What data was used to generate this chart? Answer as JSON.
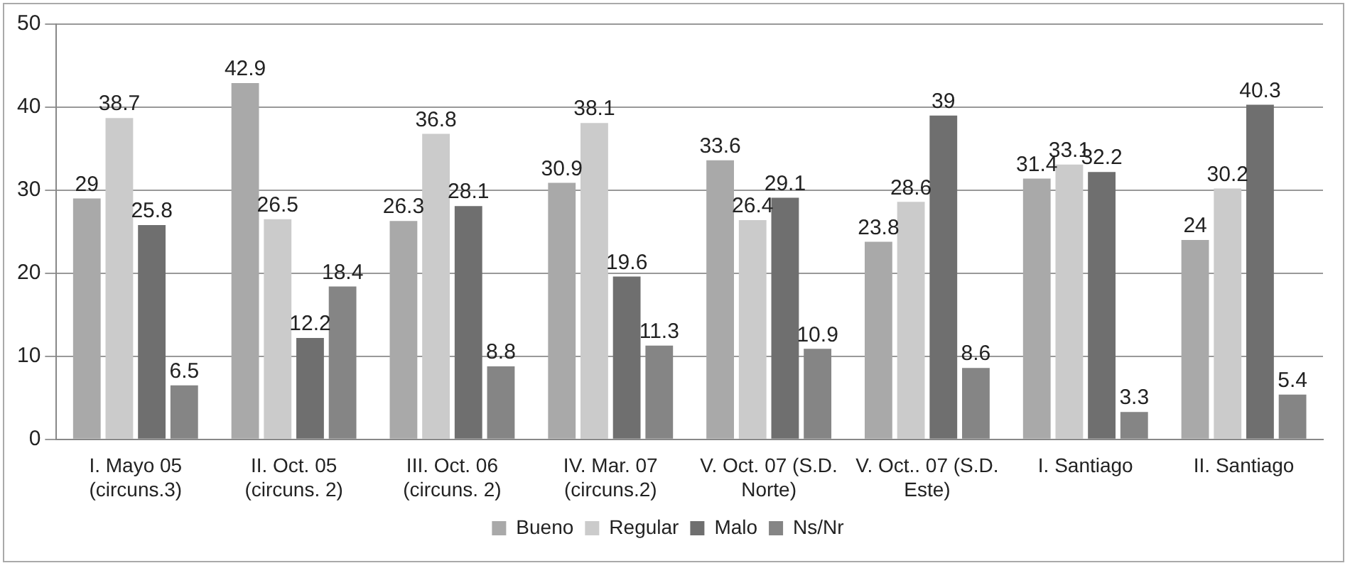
{
  "chart_data": {
    "type": "bar",
    "categories": [
      "I. Mayo 05\n(circuns.3)",
      "II. Oct. 05\n(circuns. 2)",
      "III. Oct. 06\n(circuns. 2)",
      "IV. Mar. 07\n(circuns.2)",
      "V. Oct. 07 (S.D.\nNorte)",
      "V. Oct.. 07 (S.D.\nEste)",
      "I. Santiago",
      "II. Santiago"
    ],
    "series": [
      {
        "name": "Bueno",
        "color": "#a9a9a9",
        "values": [
          29,
          42.9,
          26.3,
          30.9,
          33.6,
          23.8,
          31.4,
          24
        ]
      },
      {
        "name": "Regular",
        "color": "#cbcbcb",
        "values": [
          38.7,
          26.5,
          36.8,
          38.1,
          26.4,
          28.6,
          33.1,
          30.2
        ]
      },
      {
        "name": "Malo",
        "color": "#6f6f6f",
        "values": [
          25.8,
          12.2,
          28.1,
          19.6,
          29.1,
          39,
          32.2,
          40.3
        ]
      },
      {
        "name": "Ns/Nr",
        "color": "#858585",
        "values": [
          6.5,
          18.4,
          8.8,
          11.3,
          10.9,
          8.6,
          3.3,
          5.4
        ]
      }
    ],
    "ylim": [
      0,
      50
    ],
    "yticks": [
      0,
      10,
      20,
      30,
      40,
      50
    ],
    "grid": "y",
    "legend": "bottom",
    "data_labels": true
  }
}
